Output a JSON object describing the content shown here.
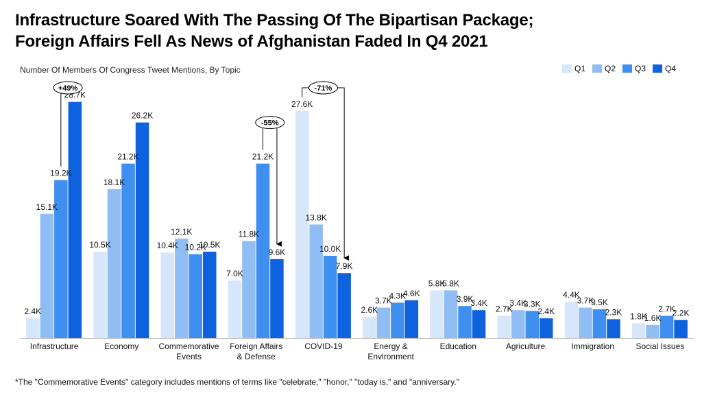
{
  "title_line1": "Infrastructure Soared With The Passing Of The Bipartisan Package;",
  "title_line2": "Foreign Affairs Fell As News of Afghanistan Faded In Q4 2021",
  "footnote": "*The \"Commemorative Events\" category includes mentions of terms like \"celebrate,\" \"honor,\" \"today is,\" and \"anniversary.\"",
  "chart_data": {
    "type": "bar",
    "title": "Infrastructure Soared With The Passing Of The Bipartisan Package; Foreign Affairs Fell As News of Afghanistan Faded In Q4 2021",
    "subtitle": "Number Of Members Of Congress Tweet Mentions, By Topic",
    "categories": [
      [
        "Infrastructure"
      ],
      [
        "Economy"
      ],
      [
        "Commemorative",
        "Events"
      ],
      [
        "Foreign Affairs",
        "& Defense"
      ],
      [
        "COVID-19"
      ],
      [
        "Energy &",
        "Environment"
      ],
      [
        "Education"
      ],
      [
        "Agriculture"
      ],
      [
        "Immigration"
      ],
      [
        "Social Issues"
      ]
    ],
    "series": [
      {
        "name": "Q1",
        "color": "#d6e6fb",
        "values": [
          2.4,
          10.5,
          10.4,
          7.0,
          27.6,
          2.6,
          5.8,
          2.7,
          4.4,
          1.8
        ],
        "labels": [
          "2.4K",
          "10.5K",
          "10.4K",
          "7.0K",
          "27.6K",
          "2.6K",
          "5.8K",
          "2.7K",
          "4.4K",
          "1.8K"
        ]
      },
      {
        "name": "Q2",
        "color": "#90bdf3",
        "values": [
          15.1,
          18.1,
          12.1,
          11.8,
          13.8,
          3.7,
          5.8,
          3.4,
          3.7,
          1.6
        ],
        "labels": [
          "15.1K",
          "18.1K",
          "12.1K",
          "11.8K",
          "13.8K",
          "3.7K",
          "5.8K",
          "3.4K",
          "3.7K",
          "1.6K"
        ]
      },
      {
        "name": "Q3",
        "color": "#3f8ff0",
        "values": [
          19.2,
          21.2,
          10.2,
          21.2,
          10.0,
          4.3,
          3.9,
          3.3,
          3.5,
          2.7
        ],
        "labels": [
          "19.2K",
          "21.2K",
          "10.2K",
          "21.2K",
          "10.0K",
          "4.3K",
          "3.9K",
          "3.3K",
          "3.5K",
          "2.7K"
        ]
      },
      {
        "name": "Q4",
        "color": "#0f62dd",
        "values": [
          28.7,
          26.2,
          10.5,
          9.6,
          7.9,
          4.6,
          3.4,
          2.4,
          2.3,
          2.2
        ],
        "labels": [
          "28.7K",
          "26.2K",
          "10.5K",
          "9.6K",
          "7.9K",
          "4.6K",
          "3.4K",
          "2.4K",
          "2.3K",
          "2.2K"
        ]
      }
    ],
    "ylim": [
      0,
      30
    ],
    "grid": false,
    "legend_position": "top-right",
    "annotations": [
      {
        "category_index": 0,
        "from_series": 2,
        "to_series": 3,
        "text": "+49%"
      },
      {
        "category_index": 3,
        "from_series": 2,
        "to_series": 3,
        "text": "-55%"
      },
      {
        "category_index": 4,
        "from_series": 0,
        "to_series": 3,
        "text": "-71%"
      }
    ]
  }
}
